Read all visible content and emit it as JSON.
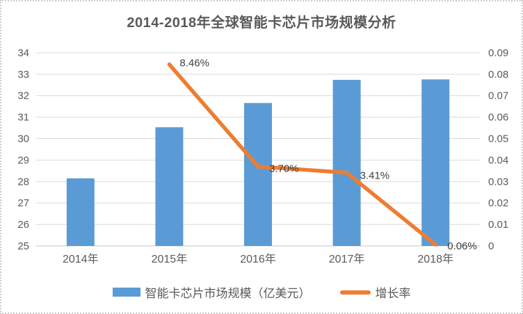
{
  "chart_data": {
    "type": "combo-bar-line",
    "title": "2014-2018年全球智能卡芯片市场规模分析",
    "categories": [
      "2014年",
      "2015年",
      "2016年",
      "2017年",
      "2018年"
    ],
    "series": [
      {
        "name": "智能卡芯片市场规模（亿美元）",
        "type": "bar",
        "axis": "left",
        "color": "#5B9BD5",
        "values": [
          28.15,
          30.53,
          31.66,
          32.74,
          32.76
        ]
      },
      {
        "name": "增长率",
        "type": "line",
        "axis": "right",
        "color": "#ED7D31",
        "values": [
          null,
          0.0846,
          0.037,
          0.0341,
          0.0006
        ],
        "point_labels": [
          "",
          "8.46%",
          "3.70%",
          "3.41%",
          "0.06%"
        ]
      }
    ],
    "left_axis": {
      "min": 25,
      "max": 34,
      "step": 1,
      "tick_labels": [
        "34",
        "33",
        "32",
        "31",
        "30",
        "29",
        "28",
        "27",
        "26",
        "25"
      ]
    },
    "right_axis": {
      "min": 0,
      "max": 0.09,
      "step": 0.01,
      "tick_labels": [
        "0.09",
        "0.08",
        "0.07",
        "0.06",
        "0.05",
        "0.04",
        "0.03",
        "0.02",
        "0.01",
        "0"
      ]
    },
    "grid": true,
    "legend_position": "bottom",
    "colors": {
      "axis_text": "#595959",
      "grid_line": "#D9D9D9",
      "baseline": "#C6C6C6",
      "data_label": "#404040"
    }
  }
}
